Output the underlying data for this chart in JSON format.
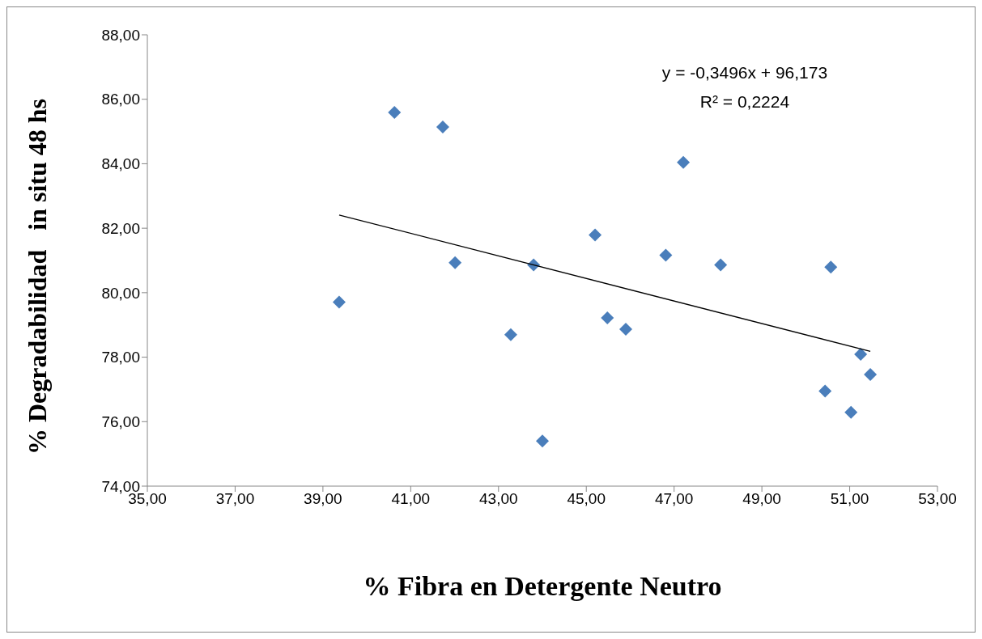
{
  "chart_data": {
    "type": "scatter",
    "xlabel": "% Fibra en Detergente Neutro",
    "ylabel": "% Degradabilidad   in situ 48 hs",
    "annotations": [
      "y = -0,3496x + 96,173",
      "R² = 0,2224"
    ],
    "series": [
      {
        "color": "#4a7ebb",
        "marker": "diamond",
        "x": [
          39.37,
          40.63,
          41.73,
          42.01,
          43.28,
          44.0,
          43.8,
          45.2,
          45.48,
          45.9,
          46.81,
          47.21,
          48.06,
          50.57,
          50.44,
          51.03,
          51.25,
          51.47
        ],
        "values": [
          79.71,
          85.59,
          85.14,
          80.93,
          78.7,
          75.4,
          80.86,
          81.79,
          79.22,
          78.87,
          81.16,
          84.04,
          80.86,
          80.79,
          76.95,
          76.29,
          78.09,
          77.46
        ]
      },
      {
        "type": "line",
        "color": "#000000",
        "marker": "none",
        "x": [
          39.37,
          51.47
        ],
        "values": [
          82.41,
          78.18
        ]
      }
    ],
    "xlim": [
      35,
      53
    ],
    "xticks": [
      {
        "value": 35,
        "label": "35,00"
      },
      {
        "value": 37,
        "label": "37,00"
      },
      {
        "value": 39,
        "label": "39,00"
      },
      {
        "value": 41,
        "label": "41,00"
      },
      {
        "value": 43,
        "label": "43,00"
      },
      {
        "value": 45,
        "label": "45,00"
      },
      {
        "value": 47,
        "label": "47,00"
      },
      {
        "value": 49,
        "label": "49,00"
      },
      {
        "value": 51,
        "label": "51,00"
      },
      {
        "value": 53,
        "label": "53,00"
      }
    ],
    "ylim": [
      74,
      88
    ],
    "yticks": [
      {
        "value": 74,
        "label": "74,00"
      },
      {
        "value": 76,
        "label": "76,00"
      },
      {
        "value": 78,
        "label": "78,00"
      },
      {
        "value": 80,
        "label": "80,00"
      },
      {
        "value": 82,
        "label": "82,00"
      },
      {
        "value": 84,
        "label": "84,00"
      },
      {
        "value": 86,
        "label": "86,00"
      },
      {
        "value": 88,
        "label": "88,00"
      }
    ],
    "grid": false,
    "legend": false
  }
}
